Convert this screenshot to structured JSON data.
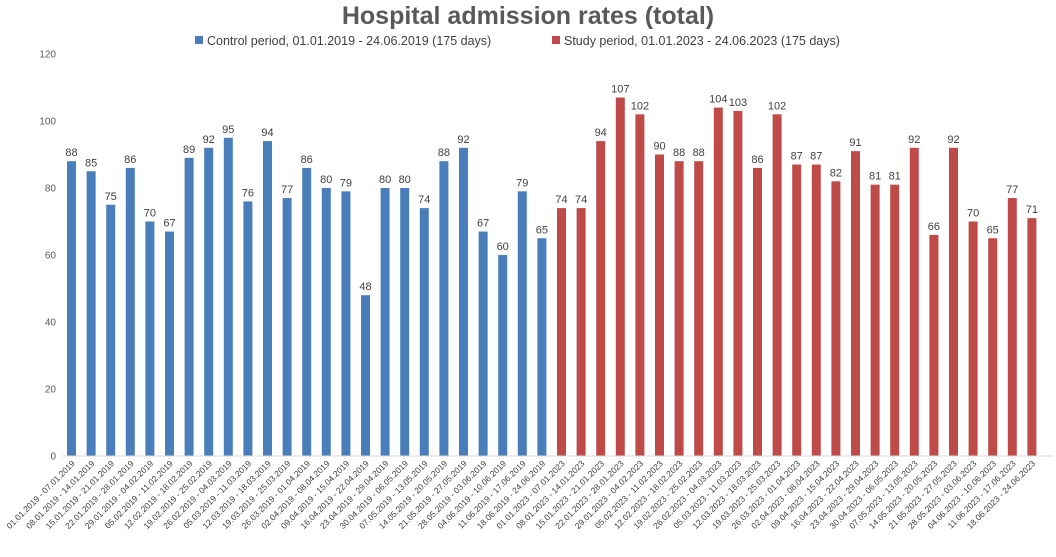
{
  "chart_data": {
    "type": "bar",
    "title": "Hospital admission rates (total)",
    "xlabel": "",
    "ylabel": "",
    "ylim": [
      0,
      120
    ],
    "yticks": [
      0,
      20,
      40,
      60,
      80,
      100,
      120
    ],
    "grid": false,
    "legend_position": "top",
    "series": [
      {
        "name": "Control period, 01.01.2019 - 24.06.2019 (175 days)",
        "color": "#4a7ebb",
        "categories": [
          "01.01.2019 - 07.01.2019",
          "08.01.2019 - 14.01.2019",
          "15.01.2019 - 21.01.2019",
          "22.01.2019 - 28.01.2019",
          "29.01.2019 - 04.02.2019",
          "05.02.2019 - 11.02.2019",
          "12.02.2019 - 18.02.2019",
          "19.02.2019 - 25.02.2019",
          "26.02.2019 - 04.03.2019",
          "05.03.2019 - 11.03.2019",
          "12.03.2019 - 18.03.2019",
          "19.03.2019 - 25.03.2019",
          "26.03.2019 - 01.04.2019",
          "02.04.2019 - 08.04.2019",
          "09.04.2019 - 15.04.2019",
          "16.04.2019 - 22.04.2019",
          "23.04.2019 - 29.04.2019",
          "30.04.2019 - 06.05.2019",
          "07.05.2019 - 13.05.2019",
          "14.05.2019 - 20.05.2019",
          "21.05.2019 - 27.05.2019",
          "28.05.2019 - 03.06.2019",
          "04.06.2019 - 10.06.2019",
          "11.06.2019 - 17.06.2019",
          "18.06.2019 - 24.06.2019"
        ],
        "values": [
          88,
          85,
          75,
          86,
          70,
          67,
          89,
          92,
          95,
          76,
          94,
          77,
          86,
          80,
          79,
          48,
          80,
          80,
          74,
          88,
          92,
          67,
          60,
          79,
          65
        ]
      },
      {
        "name": "Study period, 01.01.2023 - 24.06.2023 (175 days)",
        "color": "#be4b48",
        "categories": [
          "01.01.2023 - 07.01.2023",
          "08.01.2023 - 14.01.2023",
          "15.01.2023 - 21.01.2023",
          "22.01.2023 - 28.01.2023",
          "29.01.2023 - 04.02.2023",
          "05.02.2023 - 11.02.2023",
          "12.02.2023 - 18.02.2023",
          "19.02.2023 - 25.02.2023",
          "26.02.2023 - 04.03.2023",
          "05.03.2023 - 11.03.2023",
          "12.03.2023 - 18.03.2023",
          "19.03.2023 - 25.03.2023",
          "26.03.2023 - 01.04.2023",
          "02.04.2023 - 08.04.2023",
          "09.04.2023 - 15.04.2023",
          "16.04.2023 - 22.04.2023",
          "23.04.2023 - 29.04.2023",
          "30.04.2023 - 06.05.2023",
          "07.05.2023 - 13.05.2023",
          "14.05.2023 - 20.05.2023",
          "21.05.2023 - 27.05.2023",
          "28.05.2023 - 03.06.2023",
          "04.06.2023 - 10.06.2023",
          "11.06.2023 - 17.06.2023",
          "18.06.2023 - 24.06.2023"
        ],
        "values": [
          74,
          74,
          94,
          107,
          102,
          90,
          88,
          88,
          104,
          103,
          86,
          102,
          87,
          87,
          82,
          91,
          81,
          81,
          92,
          66,
          92,
          70,
          65,
          77,
          71
        ]
      }
    ]
  }
}
